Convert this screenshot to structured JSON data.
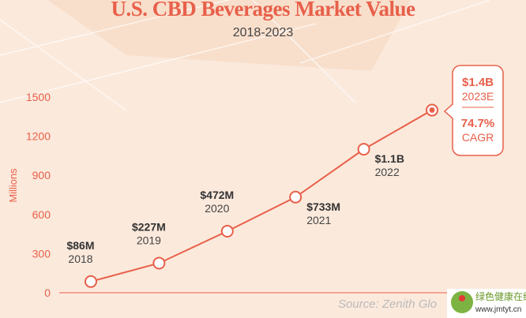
{
  "chart_data": {
    "type": "line",
    "title": "U.S. CBD Beverages Market Value",
    "subtitle": "2018-2023",
    "ylabel": "Millions",
    "ylim": [
      0,
      1500
    ],
    "yticks": [
      0,
      300,
      600,
      900,
      1200,
      1500
    ],
    "grid": false,
    "x": [
      "2018",
      "2019",
      "2020",
      "2021",
      "2022",
      "2023E"
    ],
    "values": [
      86,
      227,
      472,
      733,
      1100,
      1400
    ],
    "data_labels": [
      "$86M",
      "$227M",
      "$472M",
      "$733M",
      "$1.1B",
      "$1.4B"
    ],
    "annotation": {
      "value": "$1.4B",
      "year": "2023E",
      "cagr": "74.7%",
      "cagr_label": "CAGR"
    },
    "source": "Source: Zenith Glo",
    "colors": {
      "line": "#e8604a",
      "text": "#333333",
      "axis": "#e8604a"
    }
  },
  "watermark": {
    "name": "绿色健康在线",
    "url": "www.jmtyt.cn"
  }
}
